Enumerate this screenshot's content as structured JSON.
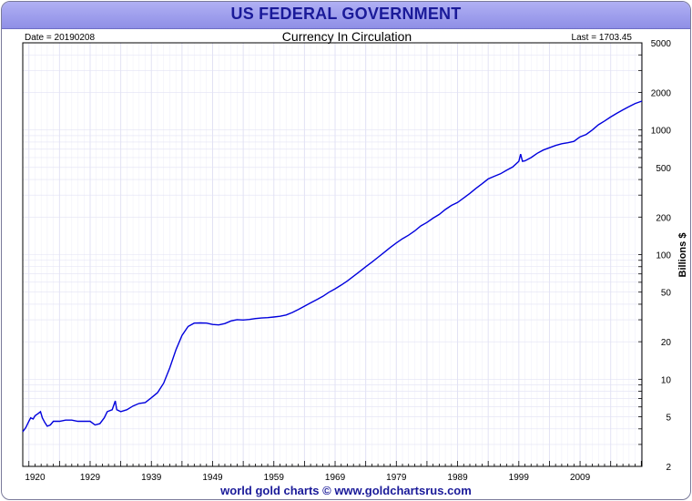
{
  "header": {
    "title": "US FEDERAL GOVERNMENT"
  },
  "info": {
    "date": "Date = 20190208",
    "last": "Last = 1703.45"
  },
  "footer": {
    "credit": "world gold charts © www.goldchartsrus.com"
  },
  "colors": {
    "line": "#0000dd",
    "grid": "#e2e2f4",
    "banner": "#a2a2ee",
    "title_text": "#1a1a99"
  },
  "chart_data": {
    "type": "line",
    "title": "Currency In Circulation",
    "xlabel": "",
    "ylabel": "Billions $",
    "y_scale": "log",
    "xlim": [
      1918.0,
      2019.1
    ],
    "ylim": [
      2,
      5000
    ],
    "x_ticks": [
      1920,
      1929,
      1939,
      1949,
      1959,
      1969,
      1979,
      1989,
      1999,
      2009
    ],
    "y_ticks": [
      5000,
      2000,
      1000,
      500,
      200,
      100,
      50,
      20,
      10,
      5,
      2
    ],
    "series": [
      {
        "name": "Currency In Circulation",
        "points": [
          [
            1918.0,
            3.8
          ],
          [
            1918.5,
            4.1
          ],
          [
            1919.0,
            4.6
          ],
          [
            1919.3,
            4.9
          ],
          [
            1919.7,
            4.8
          ],
          [
            1920.0,
            5.1
          ],
          [
            1920.5,
            5.3
          ],
          [
            1920.9,
            5.5
          ],
          [
            1921.2,
            4.9
          ],
          [
            1921.6,
            4.5
          ],
          [
            1922.0,
            4.2
          ],
          [
            1922.5,
            4.3
          ],
          [
            1923.0,
            4.6
          ],
          [
            1924.0,
            4.6
          ],
          [
            1925.0,
            4.7
          ],
          [
            1926.0,
            4.7
          ],
          [
            1927.0,
            4.6
          ],
          [
            1928.0,
            4.6
          ],
          [
            1929.0,
            4.6
          ],
          [
            1929.8,
            4.3
          ],
          [
            1930.6,
            4.4
          ],
          [
            1931.3,
            4.9
          ],
          [
            1931.8,
            5.5
          ],
          [
            1932.6,
            5.7
          ],
          [
            1933.1,
            6.7
          ],
          [
            1933.35,
            5.7
          ],
          [
            1934.0,
            5.5
          ],
          [
            1935.0,
            5.7
          ],
          [
            1936.0,
            6.1
          ],
          [
            1937.0,
            6.4
          ],
          [
            1938.0,
            6.5
          ],
          [
            1939.0,
            7.1
          ],
          [
            1940.0,
            7.8
          ],
          [
            1941.0,
            9.3
          ],
          [
            1942.0,
            12.3
          ],
          [
            1943.0,
            17.2
          ],
          [
            1944.0,
            22.5
          ],
          [
            1945.0,
            26.5
          ],
          [
            1946.0,
            28.2
          ],
          [
            1947.0,
            28.3
          ],
          [
            1948.0,
            28.2
          ],
          [
            1949.0,
            27.5
          ],
          [
            1950.0,
            27.3
          ],
          [
            1951.0,
            28.0
          ],
          [
            1952.0,
            29.4
          ],
          [
            1953.0,
            30.1
          ],
          [
            1954.0,
            29.9
          ],
          [
            1955.0,
            30.2
          ],
          [
            1956.0,
            30.7
          ],
          [
            1957.0,
            31.0
          ],
          [
            1958.0,
            31.2
          ],
          [
            1959.0,
            31.6
          ],
          [
            1960.0,
            32.0
          ],
          [
            1961.0,
            32.8
          ],
          [
            1962.0,
            34.3
          ],
          [
            1963.0,
            36.3
          ],
          [
            1964.0,
            38.6
          ],
          [
            1965.0,
            41.0
          ],
          [
            1966.0,
            43.5
          ],
          [
            1967.0,
            46.3
          ],
          [
            1968.0,
            49.9
          ],
          [
            1969.0,
            53.1
          ],
          [
            1970.0,
            57.0
          ],
          [
            1971.0,
            61.5
          ],
          [
            1972.0,
            67.0
          ],
          [
            1973.0,
            73.0
          ],
          [
            1974.0,
            80.0
          ],
          [
            1975.0,
            87.0
          ],
          [
            1976.0,
            95.0
          ],
          [
            1977.0,
            104.0
          ],
          [
            1978.0,
            114.0
          ],
          [
            1979.0,
            124.0
          ],
          [
            1980.0,
            134.0
          ],
          [
            1981.0,
            143.0
          ],
          [
            1982.0,
            155.0
          ],
          [
            1983.0,
            170.0
          ],
          [
            1984.0,
            181.0
          ],
          [
            1985.0,
            196.0
          ],
          [
            1986.0,
            210.0
          ],
          [
            1987.0,
            230.0
          ],
          [
            1988.0,
            248.0
          ],
          [
            1989.0,
            262.0
          ],
          [
            1990.0,
            285.0
          ],
          [
            1991.0,
            310.0
          ],
          [
            1992.0,
            340.0
          ],
          [
            1993.0,
            370.0
          ],
          [
            1994.0,
            405.0
          ],
          [
            1995.0,
            425.0
          ],
          [
            1996.0,
            445.0
          ],
          [
            1997.0,
            475.0
          ],
          [
            1998.0,
            505.0
          ],
          [
            1999.0,
            560.0
          ],
          [
            1999.3,
            640.0
          ],
          [
            1999.6,
            560.0
          ],
          [
            2000.0,
            565.0
          ],
          [
            2001.0,
            600.0
          ],
          [
            2002.0,
            650.0
          ],
          [
            2003.0,
            690.0
          ],
          [
            2004.0,
            720.0
          ],
          [
            2005.0,
            750.0
          ],
          [
            2006.0,
            775.0
          ],
          [
            2007.0,
            790.0
          ],
          [
            2008.0,
            810.0
          ],
          [
            2009.0,
            880.0
          ],
          [
            2010.0,
            920.0
          ],
          [
            2011.0,
            1000.0
          ],
          [
            2012.0,
            1100.0
          ],
          [
            2013.0,
            1180.0
          ],
          [
            2014.0,
            1270.0
          ],
          [
            2015.0,
            1360.0
          ],
          [
            2016.0,
            1450.0
          ],
          [
            2017.0,
            1540.0
          ],
          [
            2018.0,
            1630.0
          ],
          [
            2019.1,
            1703.45
          ]
        ]
      }
    ]
  }
}
